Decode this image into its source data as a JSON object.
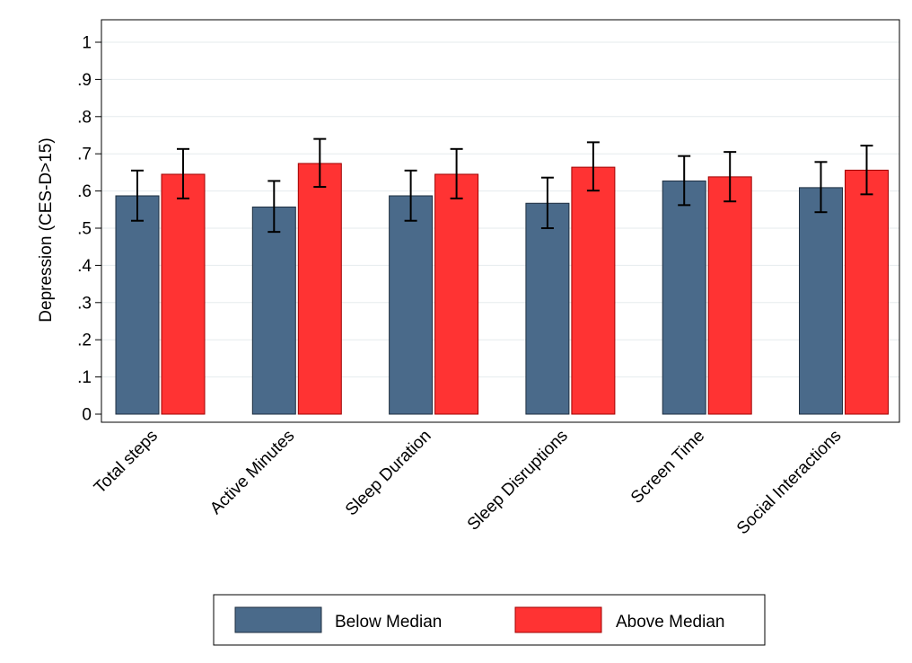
{
  "chart_data": {
    "type": "bar",
    "ylabel": "Depression (CES-D>15)",
    "xlabel": "",
    "ylim": [
      0,
      1
    ],
    "yticks": [
      "0",
      ".1",
      ".2",
      ".3",
      ".4",
      ".5",
      ".6",
      ".7",
      ".8",
      ".9",
      "1"
    ],
    "ytick_values": [
      0,
      0.1,
      0.2,
      0.3,
      0.4,
      0.5,
      0.6,
      0.7,
      0.8,
      0.9,
      1.0
    ],
    "grid": true,
    "legend_position": "bottom",
    "categories": [
      "Total steps",
      "Active Minutes",
      "Sleep Duration",
      "Sleep Disruptions",
      "Screen Time",
      "Social Interactions"
    ],
    "series": [
      {
        "name": "Below Median",
        "color": "#4a6a8a",
        "values": [
          0.587,
          0.557,
          0.587,
          0.567,
          0.627,
          0.609
        ],
        "ci_low": [
          0.52,
          0.49,
          0.52,
          0.5,
          0.562,
          0.543
        ],
        "ci_high": [
          0.655,
          0.627,
          0.655,
          0.636,
          0.694,
          0.678
        ]
      },
      {
        "name": "Above Median",
        "color": "#ff3333",
        "values": [
          0.645,
          0.674,
          0.645,
          0.664,
          0.638,
          0.656
        ],
        "ci_low": [
          0.58,
          0.611,
          0.58,
          0.601,
          0.572,
          0.591
        ],
        "ci_high": [
          0.713,
          0.74,
          0.713,
          0.731,
          0.705,
          0.722
        ]
      }
    ]
  }
}
